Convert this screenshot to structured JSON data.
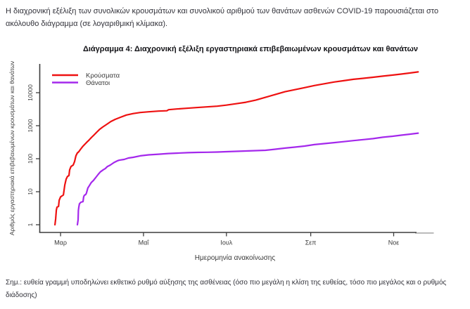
{
  "page": {
    "intro_lines": [
      "Η διαχρονική εξέλιξη των συνολικών κρουσμάτων και συνολικού αριθμού των θανάτων ασθενών COVID-19 παρουσιάζεται στο",
      "ακόλουθο διάγραμμα (σε λογαριθμική κλίμακα)."
    ],
    "note_lines": [
      "Σημ.: ευθεία γραμμή υποδηλώνει εκθετικό ρυθμό αύξησης της ασθένειας (όσο πιο μεγάλη η κλίση της ευθείας, τόσο πιο μεγάλος και ο ρυθμός",
      "διάδοσης)"
    ]
  },
  "chart_data": {
    "type": "line",
    "title": "Διάγραμμα 4: Διαχρονική εξέλιξη εργαστηριακά επιβεβαιωμένων κρουσμάτων και θανάτων",
    "xlabel": "Ημερομηνία ανακοίνωσης",
    "ylabel": "Αριθμός εργαστηριακά επιβεβαιωμένων κρουσμάτων και θανάτων",
    "y_scale": "log10",
    "x_unit": "days since 1 March 2020",
    "xlim": [
      -15.3,
      273.2
    ],
    "ylim_log10": [
      -0.234,
      4.872
    ],
    "grid": false,
    "legend_position": "top-left",
    "axis_color": "#3d3d3d",
    "axis_shadow_color": "#ababab",
    "tick_text_color": "#3a3a3a",
    "x_ticks": [
      {
        "d": 0,
        "label": "Μαρ"
      },
      {
        "d": 61,
        "label": "Μαΐ"
      },
      {
        "d": 122,
        "label": "Ιουλ"
      },
      {
        "d": 184,
        "label": "Σεπ"
      },
      {
        "d": 245,
        "label": "Νοε"
      }
    ],
    "y_ticks": [
      1,
      10,
      100,
      1000,
      10000
    ],
    "series": [
      {
        "name": "Κρούσματα",
        "color": "#ee1111",
        "points": [
          [
            -4.1,
            1
          ],
          [
            -3.6,
            1.5
          ],
          [
            -3.1,
            2.8
          ],
          [
            -2.6,
            3.4
          ],
          [
            -1.5,
            3.6
          ],
          [
            -1,
            5.5
          ],
          [
            0,
            7
          ],
          [
            2.1,
            8
          ],
          [
            3.1,
            16
          ],
          [
            4.1,
            24
          ],
          [
            5.1,
            29
          ],
          [
            6.2,
            31
          ],
          [
            6.7,
            46
          ],
          [
            7.7,
            58
          ],
          [
            9.3,
            64
          ],
          [
            10.3,
            82
          ],
          [
            11.3,
            122
          ],
          [
            12.3,
            148
          ],
          [
            13.4,
            163
          ],
          [
            14.9,
            198
          ],
          [
            16.5,
            240
          ],
          [
            17.5,
            265
          ],
          [
            19,
            307
          ],
          [
            20.6,
            356
          ],
          [
            22.6,
            434
          ],
          [
            24.7,
            528
          ],
          [
            26.7,
            642
          ],
          [
            28.8,
            780
          ],
          [
            30.9,
            905
          ],
          [
            34,
            1100
          ],
          [
            37,
            1340
          ],
          [
            40.1,
            1555
          ],
          [
            44.2,
            1810
          ],
          [
            48.4,
            2100
          ],
          [
            53.5,
            2330
          ],
          [
            58.6,
            2510
          ],
          [
            64.8,
            2640
          ],
          [
            72,
            2770
          ],
          [
            78.2,
            2840
          ],
          [
            79.5,
            3050
          ],
          [
            85.4,
            3200
          ],
          [
            92.6,
            3370
          ],
          [
            99.8,
            3540
          ],
          [
            107.5,
            3720
          ],
          [
            115.2,
            3910
          ],
          [
            121.9,
            4190
          ],
          [
            129.1,
            4640
          ],
          [
            136.3,
            5130
          ],
          [
            143.5,
            5950
          ],
          [
            150.7,
            7230
          ],
          [
            157.9,
            8800
          ],
          [
            165.1,
            10700
          ],
          [
            172.3,
            12350
          ],
          [
            179.5,
            14250
          ],
          [
            186.7,
            16440
          ],
          [
            193.9,
            18580
          ],
          [
            201.1,
            21000
          ],
          [
            208.3,
            23130
          ],
          [
            215.5,
            25470
          ],
          [
            222.7,
            27300
          ],
          [
            229.9,
            29300
          ],
          [
            237.1,
            31800
          ],
          [
            244.3,
            34200
          ],
          [
            250.5,
            36600
          ],
          [
            256.7,
            39400
          ],
          [
            263,
            42600
          ]
        ]
      },
      {
        "name": "Θάνατοι",
        "color": "#a428ec",
        "points": [
          [
            12.4,
            1
          ],
          [
            12.9,
            1.4
          ],
          [
            13.1,
            2.7
          ],
          [
            13.4,
            3.4
          ],
          [
            13.9,
            4.3
          ],
          [
            14.9,
            4.8
          ],
          [
            16.5,
            5
          ],
          [
            17,
            7
          ],
          [
            17.5,
            7.8
          ],
          [
            18.5,
            8.2
          ],
          [
            19,
            9
          ],
          [
            20.1,
            13
          ],
          [
            21.1,
            15
          ],
          [
            22.6,
            19
          ],
          [
            24.2,
            22
          ],
          [
            26.2,
            28
          ],
          [
            27.8,
            34
          ],
          [
            29.3,
            40
          ],
          [
            31.4,
            46
          ],
          [
            32.9,
            50
          ],
          [
            34.5,
            58
          ],
          [
            36.5,
            64
          ],
          [
            38.1,
            71
          ],
          [
            39.6,
            78
          ],
          [
            41.7,
            86
          ],
          [
            43.2,
            90
          ],
          [
            46.8,
            95
          ],
          [
            49.9,
            105
          ],
          [
            53.5,
            110
          ],
          [
            58.6,
            122
          ],
          [
            64.8,
            131
          ],
          [
            72,
            137
          ],
          [
            79.2,
            144
          ],
          [
            86.4,
            148
          ],
          [
            93.6,
            152
          ],
          [
            100.8,
            155
          ],
          [
            108,
            157
          ],
          [
            115.2,
            159
          ],
          [
            121.9,
            163
          ],
          [
            129.1,
            167
          ],
          [
            136.3,
            171
          ],
          [
            143.5,
            176
          ],
          [
            150.7,
            180
          ],
          [
            157.9,
            194
          ],
          [
            165.1,
            209
          ],
          [
            172.3,
            224
          ],
          [
            179.5,
            242
          ],
          [
            186.7,
            267
          ],
          [
            193.9,
            286
          ],
          [
            201.1,
            307
          ],
          [
            208.3,
            329
          ],
          [
            215.5,
            353
          ],
          [
            222.7,
            379
          ],
          [
            229.9,
            406
          ],
          [
            237.1,
            448
          ],
          [
            244.3,
            480
          ],
          [
            250.5,
            515
          ],
          [
            256.7,
            553
          ],
          [
            263,
            595
          ]
        ]
      }
    ]
  }
}
